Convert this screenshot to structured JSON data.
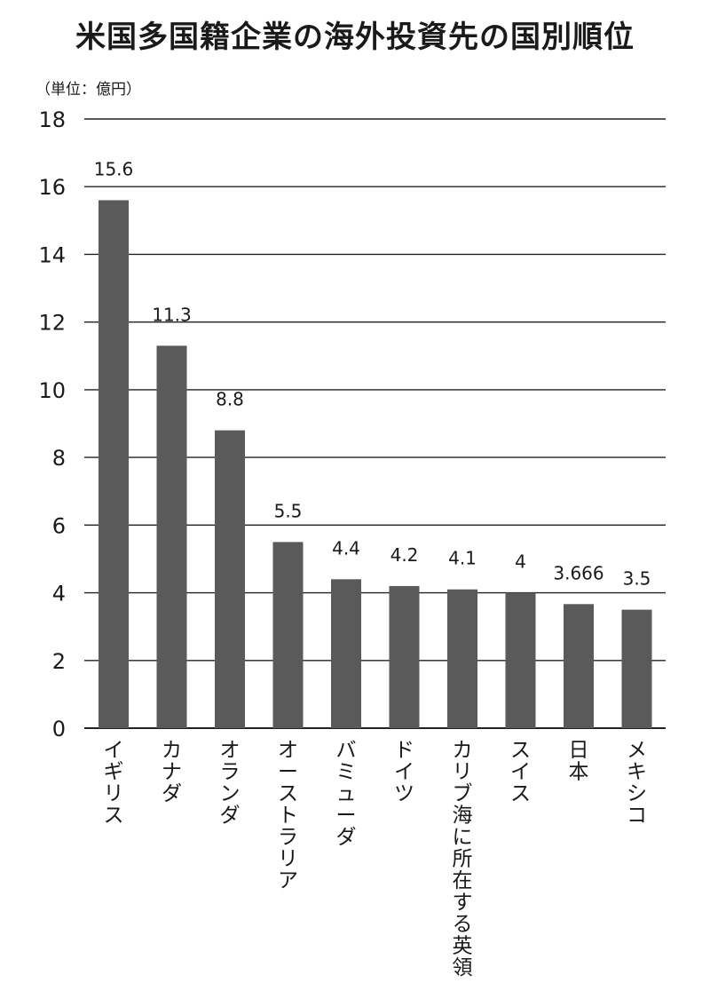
{
  "chart_data": {
    "type": "bar",
    "title": "米国多国籍企業の海外投資先の国別順位",
    "unit": "（単位：億円）",
    "categories": [
      "イギリス",
      "カナダ",
      "オランダ",
      "オーストラリア",
      "バミューダ",
      "ドイツ",
      "カリブ海に所在する英領",
      "スイス",
      "日本",
      "メキシコ"
    ],
    "values": [
      15.6,
      11.3,
      8.8,
      5.5,
      4.4,
      4.2,
      4.1,
      4,
      3.666,
      3.5
    ],
    "value_labels": [
      "15.6",
      "11.3",
      "8.8",
      "5.5",
      "4.4",
      "4.2",
      "4.1",
      "4",
      "3.666",
      "3.5"
    ],
    "ylim": [
      0,
      18
    ],
    "yticks": [
      0,
      2,
      4,
      6,
      8,
      10,
      12,
      14,
      16,
      18
    ],
    "grid": true,
    "colors": {
      "bar": "#5a5a5a",
      "grid": "#222222"
    }
  }
}
